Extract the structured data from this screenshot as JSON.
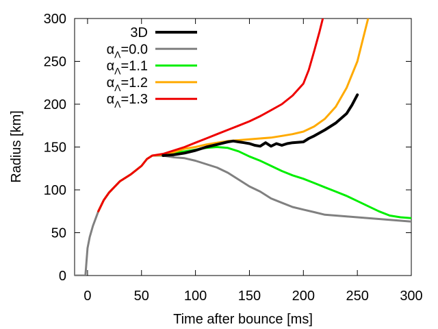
{
  "chart_data": {
    "type": "line",
    "title": "",
    "xlabel": "Time after bounce [ms]",
    "ylabel": "Radius [km]",
    "xlim": [
      -12,
      300
    ],
    "ylim": [
      0,
      300
    ],
    "xticks": [
      0,
      50,
      100,
      150,
      200,
      250,
      300
    ],
    "yticks": [
      0,
      50,
      100,
      150,
      200,
      250,
      300
    ],
    "xtick_labels": [
      "0",
      "50",
      "100",
      "150",
      "200",
      "250",
      "300"
    ],
    "ytick_labels": [
      "0",
      "50",
      "100",
      "150",
      "200",
      "250",
      "300"
    ],
    "grid": false,
    "legend_position": "top-left",
    "series": [
      {
        "name": "3D",
        "legend_main": "3D",
        "legend_sub": "",
        "legend_tail": "",
        "color": "#000000",
        "x": [
          70,
          80,
          90,
          100,
          110,
          120,
          130,
          135,
          140,
          145,
          150,
          155,
          160,
          165,
          170,
          175,
          180,
          185,
          190,
          200,
          205,
          210,
          220,
          230,
          240,
          245,
          250
        ],
        "y": [
          140,
          141,
          143,
          146,
          150,
          153,
          156,
          157,
          156,
          155,
          154,
          152,
          151,
          155,
          151,
          154,
          152,
          154,
          155,
          156,
          160,
          163,
          170,
          178,
          189,
          199,
          211
        ]
      },
      {
        "name": "αΛ=0.0",
        "legend_main": "α",
        "legend_sub": "Λ",
        "legend_tail": "=0.0",
        "color": "#808080",
        "x": [
          -12,
          -2,
          0,
          2,
          5,
          10,
          15,
          20,
          30,
          40,
          50,
          55,
          60,
          70,
          80,
          90,
          100,
          110,
          120,
          130,
          140,
          150,
          160,
          170,
          180,
          190,
          200,
          210,
          220,
          230,
          240,
          250,
          260,
          270,
          280,
          290,
          300
        ],
        "y": [
          0,
          0,
          32,
          45,
          58,
          75,
          88,
          97,
          110,
          118,
          128,
          136,
          140,
          140,
          138,
          137,
          134,
          130,
          126,
          120,
          112,
          104,
          98,
          90,
          85,
          80,
          77,
          74,
          71,
          70,
          69,
          68,
          67,
          66,
          65,
          64,
          63
        ]
      },
      {
        "name": "αΛ=1.1",
        "legend_main": "α",
        "legend_sub": "Λ",
        "legend_tail": "=1.1",
        "color": "#00ee00",
        "x": [
          10,
          15,
          20,
          30,
          40,
          50,
          55,
          60,
          70,
          80,
          90,
          100,
          110,
          120,
          130,
          140,
          150,
          160,
          170,
          180,
          190,
          200,
          210,
          220,
          230,
          240,
          250,
          260,
          270,
          280,
          290,
          300
        ],
        "y": [
          75,
          88,
          97,
          110,
          118,
          128,
          136,
          140,
          141,
          143,
          145,
          147,
          149,
          150,
          149,
          145,
          139,
          134,
          128,
          122,
          117,
          113,
          108,
          103,
          98,
          93,
          87,
          81,
          75,
          70,
          68,
          67
        ]
      },
      {
        "name": "αΛ=1.2",
        "legend_main": "α",
        "legend_sub": "Λ",
        "legend_tail": "=1.2",
        "color": "#ffaa00",
        "x": [
          10,
          15,
          20,
          30,
          40,
          50,
          55,
          60,
          70,
          80,
          90,
          100,
          110,
          120,
          130,
          140,
          150,
          160,
          170,
          180,
          190,
          200,
          210,
          220,
          230,
          240,
          250,
          255,
          260
        ],
        "y": [
          75,
          88,
          97,
          110,
          118,
          128,
          136,
          140,
          141,
          144,
          148,
          150,
          153,
          155,
          157,
          158,
          159,
          160,
          161,
          163,
          165,
          168,
          174,
          183,
          197,
          219,
          250,
          275,
          300
        ]
      },
      {
        "name": "αΛ=1.3",
        "legend_main": "α",
        "legend_sub": "Λ",
        "legend_tail": "=1.3",
        "color": "#ee0000",
        "x": [
          10,
          15,
          20,
          30,
          40,
          50,
          55,
          60,
          70,
          80,
          90,
          100,
          110,
          120,
          130,
          140,
          150,
          160,
          170,
          180,
          190,
          200,
          205,
          210,
          215,
          218
        ],
        "y": [
          75,
          88,
          97,
          110,
          118,
          128,
          136,
          140,
          142,
          146,
          150,
          155,
          160,
          165,
          170,
          175,
          180,
          186,
          193,
          200,
          210,
          224,
          240,
          262,
          285,
          300
        ]
      }
    ]
  }
}
